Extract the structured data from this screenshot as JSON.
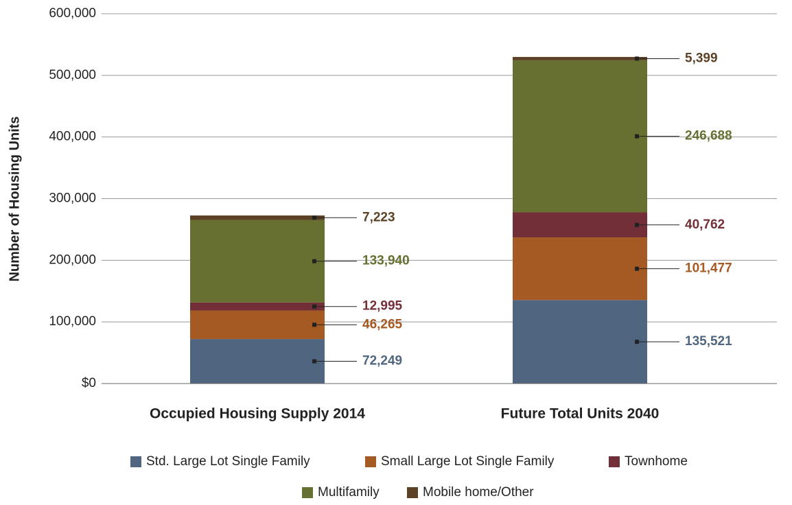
{
  "chart_data": {
    "type": "stacked_bar",
    "y_label": "Number of Housing Units",
    "categories": [
      "Occupied Housing Supply 2014",
      "Future Total Units 2040"
    ],
    "series": [
      {
        "name": "Std. Large Lot Single Family",
        "color": "#4f6580",
        "values": [
          72249,
          135521
        ],
        "value_labels": [
          "72,249",
          "135,521"
        ]
      },
      {
        "name": "Small Large Lot Single Family",
        "color": "#a65a23",
        "values": [
          46265,
          101477
        ],
        "value_labels": [
          "46,265",
          "101,477"
        ]
      },
      {
        "name": "Townhome",
        "color": "#722f37",
        "values": [
          12995,
          40762
        ],
        "value_labels": [
          "12,995",
          "40,762"
        ]
      },
      {
        "name": "Multifamily",
        "color": "#677030",
        "values": [
          133940,
          246688
        ],
        "value_labels": [
          "133,940",
          "246,688"
        ]
      },
      {
        "name": "Mobile home/Other",
        "color": "#5c4127",
        "values": [
          7223,
          5399
        ],
        "value_labels": [
          "7,223",
          "5,399"
        ]
      }
    ],
    "ylim": [
      0,
      600000
    ],
    "yticks": [
      {
        "value": 0,
        "label": "$0"
      },
      {
        "value": 100000,
        "label": "100,000"
      },
      {
        "value": 200000,
        "label": "200,000"
      },
      {
        "value": 300000,
        "label": "300,000"
      },
      {
        "value": 400000,
        "label": "400,000"
      },
      {
        "value": 500000,
        "label": "500,000"
      },
      {
        "value": 600000,
        "label": "600,000"
      }
    ],
    "grid": true
  }
}
